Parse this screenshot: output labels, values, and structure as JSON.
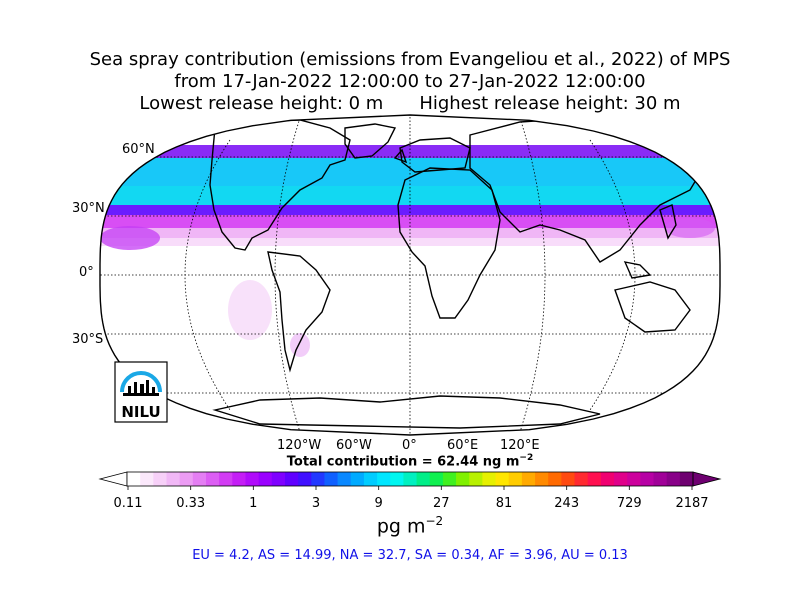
{
  "title": {
    "line1": "Sea spray contribution (emissions from Evangeliou et al., 2022) of MPS",
    "line2": "from 17-Jan-2022 12:00:00 to 27-Jan-2022 12:00:00",
    "lowest": "Lowest release height: 0 m",
    "highest": "Highest release height: 30 m"
  },
  "map": {
    "projection": "robinson",
    "lat_labels": [
      "60°N",
      "30°N",
      "0°",
      "30°S"
    ],
    "lon_labels": [
      "120°W",
      "60°W",
      "0°",
      "60°E",
      "120°E"
    ]
  },
  "total": {
    "text": "Total contribution = 62.44 ng m",
    "exp": "−2"
  },
  "colorbar": {
    "ticks": [
      "0.11",
      "0.33",
      "1",
      "3",
      "9",
      "27",
      "81",
      "243",
      "729",
      "2187"
    ],
    "unit": "pg m",
    "unit_exp": "−2",
    "colors": [
      "#ffffff",
      "#fbe8fb",
      "#f7d0f8",
      "#f1b8f6",
      "#ec9cf4",
      "#e47ef3",
      "#dc5ef3",
      "#d23cf3",
      "#c41ef5",
      "#b00cfa",
      "#9a00ff",
      "#7f00ff",
      "#6000ff",
      "#4010ff",
      "#2238ff",
      "#1060ff",
      "#0a88ff",
      "#00aaff",
      "#00ccff",
      "#00e6ff",
      "#00f6f0",
      "#00f0c0",
      "#00ee88",
      "#10f050",
      "#40f020",
      "#80f000",
      "#b8f000",
      "#e6f000",
      "#ffe600",
      "#ffcc00",
      "#ffaa00",
      "#ff8a00",
      "#ff6a00",
      "#ff4a10",
      "#ff2a30",
      "#ff1050",
      "#f00070",
      "#e0008a",
      "#cc009c",
      "#b600a4",
      "#a00098",
      "#880088",
      "#6e0070"
    ]
  },
  "regions": "EU = 4.2,  AS = 14.99,  NA = 32.7,  SA = 0.34,  AF = 3.96,  AU = 0.13",
  "logo": {
    "text": "NILU"
  },
  "colors": {
    "region_text": "#1010e8"
  }
}
